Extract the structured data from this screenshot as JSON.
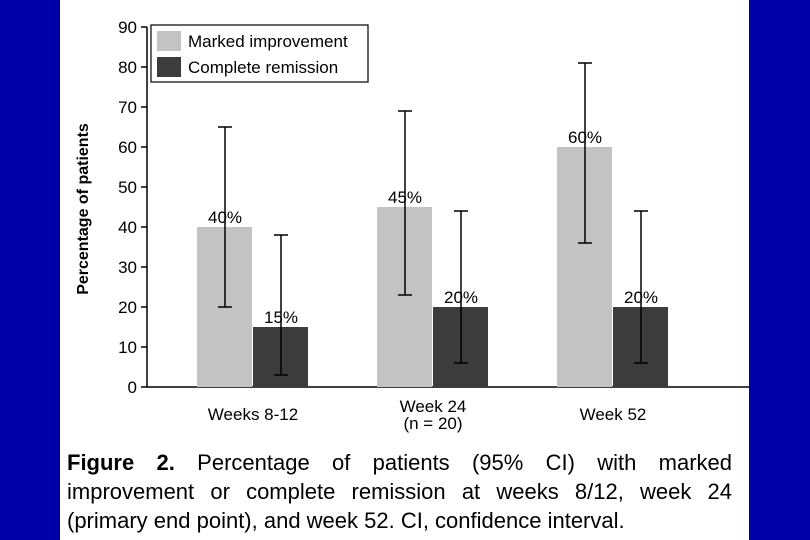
{
  "colors": {
    "background": "#0000a8",
    "panel": "#ffffff",
    "marked": "#c3c3c3",
    "complete": "#3c3c3c"
  },
  "chart_data": {
    "type": "bar",
    "ylabel": "Percentage of patients",
    "ylim": [
      0,
      90
    ],
    "yticks": [
      0,
      10,
      20,
      30,
      40,
      50,
      60,
      70,
      80,
      90
    ],
    "categories": [
      [
        "Weeks 8-12"
      ],
      [
        "Week 24",
        "(n = 20)"
      ],
      [
        "Week 52"
      ]
    ],
    "series": [
      {
        "name": "Marked improvement",
        "values": [
          40,
          45,
          60
        ],
        "labels": [
          "40%",
          "45%",
          "60%"
        ],
        "ci": [
          [
            20,
            65
          ],
          [
            23,
            69
          ],
          [
            36,
            81
          ]
        ]
      },
      {
        "name": "Complete remission",
        "values": [
          15,
          20,
          20
        ],
        "labels": [
          "15%",
          "20%",
          "20%"
        ],
        "ci": [
          [
            3,
            38
          ],
          [
            6,
            44
          ],
          [
            6,
            44
          ]
        ]
      }
    ],
    "legend": "top-left",
    "grid": false
  },
  "caption": {
    "label": "Figure 2.",
    "text": "Percentage of patients (95% CI) with marked improvement or complete remission at weeks 8/12, week 24 (primary end point), and week 52. CI, confidence interval."
  }
}
